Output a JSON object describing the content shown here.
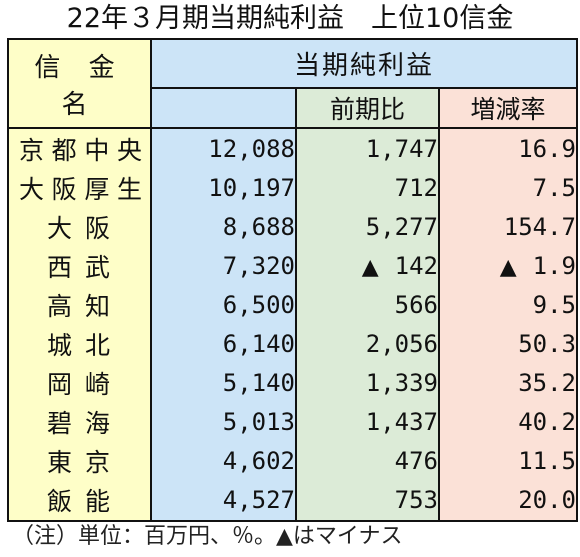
{
  "title": "22年３月期当期純利益　上位10信金",
  "header": {
    "name_col": "信 金 名",
    "group": "当期純利益",
    "prev_ratio": "前期比",
    "growth_rate": "増減率"
  },
  "neg_symbol": "▲",
  "rows": [
    {
      "name": "京都中央",
      "profit": "12,088",
      "prev": "1,747",
      "prev_neg": false,
      "rate": "16.9",
      "rate_neg": false
    },
    {
      "name": "大阪厚生",
      "profit": "10,197",
      "prev": "712",
      "prev_neg": false,
      "rate": "7.5",
      "rate_neg": false
    },
    {
      "name": "大阪",
      "profit": "8,688",
      "prev": "5,277",
      "prev_neg": false,
      "rate": "154.7",
      "rate_neg": false
    },
    {
      "name": "西武",
      "profit": "7,320",
      "prev": "142",
      "prev_neg": true,
      "rate": "1.9",
      "rate_neg": true
    },
    {
      "name": "高知",
      "profit": "6,500",
      "prev": "566",
      "prev_neg": false,
      "rate": "9.5",
      "rate_neg": false
    },
    {
      "name": "城北",
      "profit": "6,140",
      "prev": "2,056",
      "prev_neg": false,
      "rate": "50.3",
      "rate_neg": false
    },
    {
      "name": "岡崎",
      "profit": "5,140",
      "prev": "1,339",
      "prev_neg": false,
      "rate": "35.2",
      "rate_neg": false
    },
    {
      "name": "碧海",
      "profit": "5,013",
      "prev": "1,437",
      "prev_neg": false,
      "rate": "40.2",
      "rate_neg": false
    },
    {
      "name": "東京",
      "profit": "4,602",
      "prev": "476",
      "prev_neg": false,
      "rate": "11.5",
      "rate_neg": false
    },
    {
      "name": "飯能",
      "profit": "4,527",
      "prev": "753",
      "prev_neg": false,
      "rate": "20.0",
      "rate_neg": false
    }
  ],
  "note": "（注）単位：百万円、％。▲はマイナス",
  "colors": {
    "name_bg": "#fefec8",
    "profit_bg": "#cce4f7",
    "prev_bg": "#dcebd7",
    "rate_bg": "#fbe1d7"
  }
}
